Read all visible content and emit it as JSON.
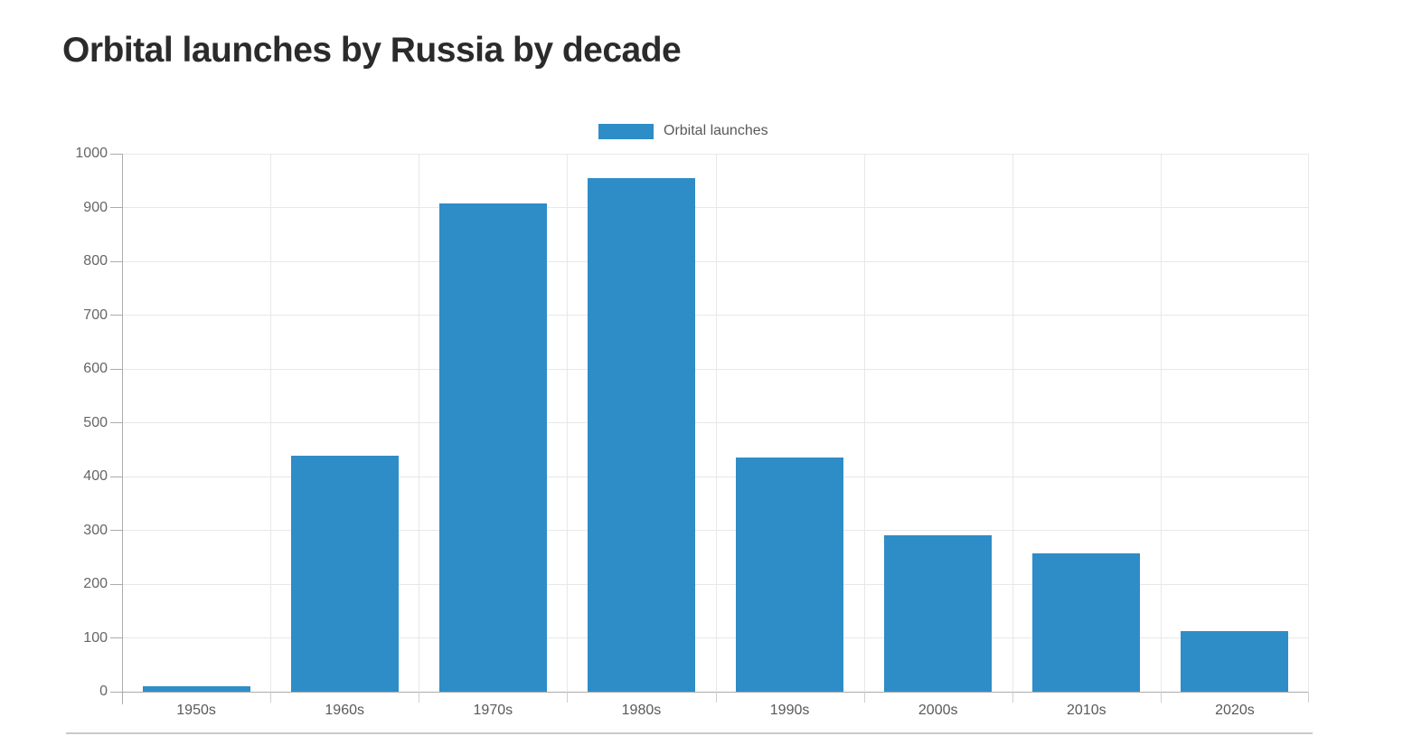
{
  "page": {
    "title": "Orbital launches by Russia by decade"
  },
  "legend": {
    "label": "Orbital launches"
  },
  "colors": {
    "bar": "#2e8dc7",
    "grid": "#e8e8e8",
    "axis": "#ababab",
    "tick": "#cfcfcf",
    "title_text": "#2b2b2b",
    "muted_text": "#666666",
    "divider": "#c9c9c9"
  },
  "chart_data": {
    "type": "bar",
    "title": "Orbital launches by Russia by decade",
    "categories": [
      "1950s",
      "1960s",
      "1970s",
      "1980s",
      "1990s",
      "2000s",
      "2010s",
      "2020s"
    ],
    "series": [
      {
        "name": "Orbital launches",
        "values": [
          10,
          438,
          908,
          955,
          436,
          290,
          257,
          112
        ]
      }
    ],
    "xlabel": "",
    "ylabel": "",
    "ylim": [
      0,
      1000
    ],
    "yticks": [
      0,
      100,
      200,
      300,
      400,
      500,
      600,
      700,
      800,
      900,
      1000
    ],
    "grid": true,
    "legend_position": "top-center",
    "bar_color": "#2e8dc7"
  }
}
